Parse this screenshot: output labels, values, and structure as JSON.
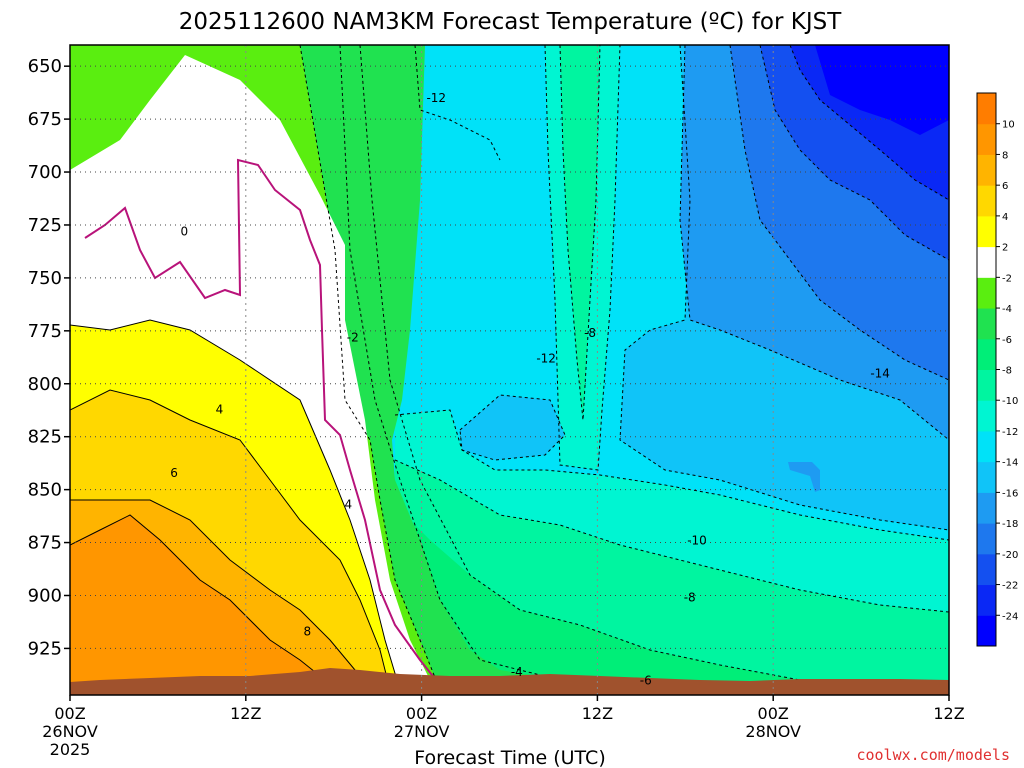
{
  "chart_data": {
    "type": "heatmap",
    "title": "2025112600 NAM3KM Forecast Temperature (ºC) for KJST",
    "xlabel": "Forecast Time (UTC)",
    "ylabel": "",
    "credit": "coolwx.com/models",
    "x_ticks": [
      {
        "hours": 0,
        "lines": [
          "00Z",
          "26NOV",
          "2025"
        ]
      },
      {
        "hours": 12,
        "lines": [
          "12Z"
        ]
      },
      {
        "hours": 24,
        "lines": [
          "00Z",
          "27NOV"
        ]
      },
      {
        "hours": 36,
        "lines": [
          "12Z"
        ]
      },
      {
        "hours": 48,
        "lines": [
          "00Z",
          "28NOV"
        ]
      },
      {
        "hours": 60,
        "lines": [
          "12Z"
        ]
      }
    ],
    "xlim_hours": [
      0,
      60
    ],
    "y_ticks": [
      650,
      675,
      700,
      725,
      750,
      775,
      800,
      825,
      850,
      875,
      900,
      925
    ],
    "ylim": [
      640,
      947
    ],
    "y_axis": "pressure (hPa), increasing downward",
    "colorbar": {
      "boundaries": [
        -26,
        -24,
        -22,
        -20,
        -18,
        -16,
        -14,
        -12,
        -10,
        -8,
        -6,
        -4,
        -2,
        2,
        4,
        6,
        8,
        10,
        12
      ],
      "labels": [
        -24,
        -22,
        -20,
        -18,
        -16,
        -14,
        -12,
        -10,
        -8,
        -6,
        -4,
        -2,
        2,
        4,
        6,
        8,
        10
      ],
      "colors": [
        "#0000ff",
        "#0a28f5",
        "#1450f0",
        "#1e78ee",
        "#1e9bf2",
        "#10c4f8",
        "#00e2f8",
        "#00f5d2",
        "#00f5a0",
        "#00ee78",
        "#20e250",
        "#5aee10",
        "#ffffff",
        "#ffff00",
        "#ffd800",
        "#ffb400",
        "#ff9600",
        "#ff7d00"
      ]
    },
    "contour_labels": [
      {
        "text": "0",
        "hours": 7.8,
        "p": 729
      },
      {
        "text": "-2",
        "hours": 19.3,
        "p": 779
      },
      {
        "text": "-12",
        "hours": 25.0,
        "p": 666
      },
      {
        "text": "4",
        "hours": 10.2,
        "p": 813
      },
      {
        "text": "6",
        "hours": 7.1,
        "p": 843
      },
      {
        "text": "4",
        "hours": 19.0,
        "p": 858
      },
      {
        "text": "8",
        "hours": 16.2,
        "p": 918
      },
      {
        "text": "-12",
        "hours": 32.5,
        "p": 789
      },
      {
        "text": "-8",
        "hours": 35.5,
        "p": 777
      },
      {
        "text": "-4",
        "hours": 30.5,
        "p": 937
      },
      {
        "text": "-6",
        "hours": 39.3,
        "p": 941
      },
      {
        "text": "-10",
        "hours": 42.8,
        "p": 875
      },
      {
        "text": "-8",
        "hours": 42.3,
        "p": 902
      },
      {
        "text": "-14",
        "hours": 55.3,
        "p": 796
      }
    ]
  }
}
